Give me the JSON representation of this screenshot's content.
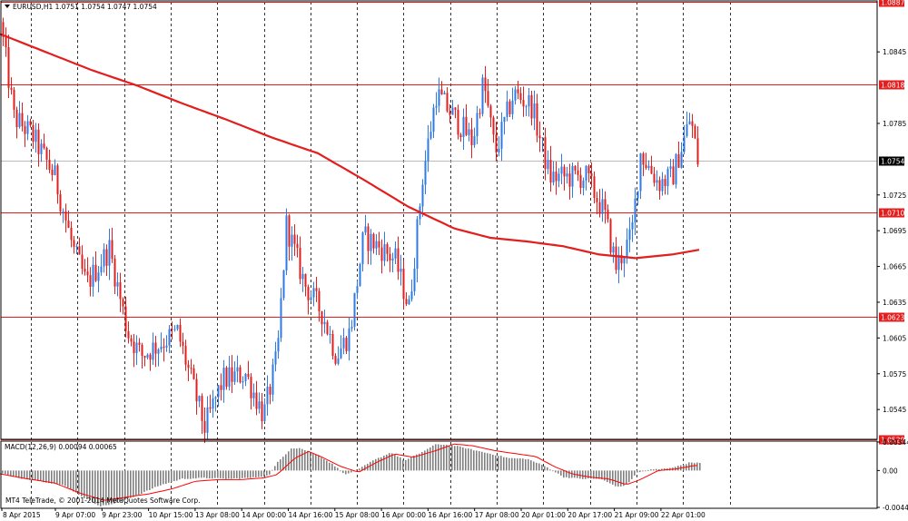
{
  "chart_data": [
    {
      "type": "candlestick",
      "title": "EURUSD,H1  1.0751 1.0754 1.0747 1.0754",
      "ylim": [
        1.052,
        1.0887
      ],
      "y_ticks": [
        "1.0845",
        "1.0785",
        "1.0725",
        "1.0695",
        "1.0665",
        "1.0635",
        "1.0605",
        "1.0575",
        "1.0545"
      ],
      "price_levels": [
        {
          "value": "1.0887",
          "level": 1.0887
        },
        {
          "value": "1.0818",
          "level": 1.0818
        },
        {
          "value": "1.0710",
          "level": 1.071
        },
        {
          "value": "1.0623",
          "level": 1.0623
        },
        {
          "value": "1.0520",
          "level": 1.052
        }
      ],
      "current_price": {
        "value": "1.0754",
        "level": 1.0754
      },
      "moving_average_anchors": [
        [
          0,
          1.086
        ],
        [
          50,
          1.0845
        ],
        [
          100,
          1.083
        ],
        [
          150,
          1.0817
        ],
        [
          200,
          1.0802
        ],
        [
          250,
          1.0788
        ],
        [
          300,
          1.0773
        ],
        [
          350,
          1.076
        ],
        [
          400,
          1.0738
        ],
        [
          450,
          1.0715
        ],
        [
          500,
          1.0697
        ],
        [
          540,
          1.0689
        ],
        [
          580,
          1.0686
        ],
        [
          620,
          1.0682
        ],
        [
          660,
          1.0675
        ],
        [
          700,
          1.0672
        ],
        [
          740,
          1.0675
        ],
        [
          770,
          1.0679
        ]
      ],
      "price_path": [
        [
          0,
          1.087
        ],
        [
          15,
          1.079
        ],
        [
          35,
          1.0775
        ],
        [
          60,
          1.074
        ],
        [
          80,
          1.068
        ],
        [
          95,
          1.065
        ],
        [
          120,
          1.068
        ],
        [
          140,
          1.061
        ],
        [
          155,
          1.059
        ],
        [
          175,
          1.06
        ],
        [
          195,
          1.061
        ],
        [
          210,
          1.057
        ],
        [
          225,
          1.053
        ],
        [
          245,
          1.057
        ],
        [
          270,
          1.0575
        ],
        [
          290,
          1.054
        ],
        [
          305,
          1.059
        ],
        [
          315,
          1.07
        ],
        [
          335,
          1.065
        ],
        [
          355,
          1.0625
        ],
        [
          370,
          1.059
        ],
        [
          385,
          1.061
        ],
        [
          400,
          1.069
        ],
        [
          420,
          1.068
        ],
        [
          435,
          1.067
        ],
        [
          450,
          1.063
        ],
        [
          465,
          1.074
        ],
        [
          480,
          1.081
        ],
        [
          500,
          1.079
        ],
        [
          520,
          1.077
        ],
        [
          532,
          1.082
        ],
        [
          545,
          1.076
        ],
        [
          565,
          1.081
        ],
        [
          585,
          1.08
        ],
        [
          605,
          1.074
        ],
        [
          625,
          1.074
        ],
        [
          645,
          1.074
        ],
        [
          665,
          1.071
        ],
        [
          678,
          1.0665
        ],
        [
          695,
          1.069
        ],
        [
          705,
          1.076
        ],
        [
          725,
          1.0735
        ],
        [
          740,
          1.074
        ],
        [
          760,
          1.079
        ],
        [
          768,
          1.0754
        ]
      ]
    },
    {
      "type": "histogram",
      "title": "MACD(12,26,9) 0.00094 0.00065",
      "ylim": [
        -0.00445,
        0.00344
      ],
      "y_ticks": [
        "0.00344",
        "0.00",
        "-0.00445"
      ],
      "histogram_path": [
        [
          0,
          -0.0003
        ],
        [
          20,
          -0.0009
        ],
        [
          40,
          -0.0012
        ],
        [
          70,
          -0.0018
        ],
        [
          95,
          -0.0035
        ],
        [
          110,
          -0.0043
        ],
        [
          125,
          -0.004
        ],
        [
          150,
          -0.003
        ],
        [
          175,
          -0.0018
        ],
        [
          200,
          -0.001
        ],
        [
          225,
          -0.0009
        ],
        [
          250,
          -0.001
        ],
        [
          275,
          -0.0009
        ],
        [
          295,
          -0.0006
        ],
        [
          305,
          0.001
        ],
        [
          320,
          0.0027
        ],
        [
          330,
          0.0027
        ],
        [
          350,
          0.0018
        ],
        [
          365,
          0.0008
        ],
        [
          380,
          -0.0005
        ],
        [
          395,
          0.0002
        ],
        [
          410,
          0.0012
        ],
        [
          430,
          0.0022
        ],
        [
          445,
          0.0012
        ],
        [
          460,
          0.002
        ],
        [
          480,
          0.0032
        ],
        [
          500,
          0.003
        ],
        [
          520,
          0.0025
        ],
        [
          540,
          0.002
        ],
        [
          560,
          0.0015
        ],
        [
          580,
          0.0014
        ],
        [
          600,
          0.0005
        ],
        [
          620,
          -0.0008
        ],
        [
          640,
          -0.001
        ],
        [
          660,
          -0.001
        ],
        [
          680,
          -0.002
        ],
        [
          690,
          -0.0017
        ],
        [
          700,
          -0.0003
        ],
        [
          715,
          0.0001
        ],
        [
          730,
          0.0002
        ],
        [
          745,
          0.0005
        ],
        [
          760,
          0.001
        ],
        [
          770,
          0.0009
        ]
      ],
      "signal_path": [
        [
          0,
          -0.0004
        ],
        [
          30,
          -0.001
        ],
        [
          60,
          -0.0015
        ],
        [
          90,
          -0.0028
        ],
        [
          115,
          -0.0036
        ],
        [
          140,
          -0.0032
        ],
        [
          165,
          -0.0028
        ],
        [
          190,
          -0.0022
        ],
        [
          215,
          -0.0013
        ],
        [
          240,
          -0.0011
        ],
        [
          265,
          -0.0011
        ],
        [
          290,
          -0.0009
        ],
        [
          305,
          -0.0005
        ],
        [
          325,
          0.0015
        ],
        [
          340,
          0.0023
        ],
        [
          355,
          0.0016
        ],
        [
          375,
          0.0005
        ],
        [
          395,
          -0.0002
        ],
        [
          415,
          0.001
        ],
        [
          435,
          0.002
        ],
        [
          455,
          0.0016
        ],
        [
          480,
          0.0024
        ],
        [
          500,
          0.0032
        ],
        [
          520,
          0.003
        ],
        [
          545,
          0.0024
        ],
        [
          570,
          0.002
        ],
        [
          590,
          0.0017
        ],
        [
          610,
          0.0005
        ],
        [
          630,
          -0.0004
        ],
        [
          650,
          -0.0008
        ],
        [
          670,
          -0.001
        ],
        [
          690,
          -0.0017
        ],
        [
          705,
          -0.0011
        ],
        [
          725,
          0.0
        ],
        [
          745,
          0.0002
        ],
        [
          765,
          0.0006
        ],
        [
          770,
          0.0006
        ]
      ]
    }
  ],
  "x_axis_labels": [
    "8 Apr 2015",
    "9 Apr 07:00",
    "9 Apr 23:00",
    "10 Apr 15:00",
    "13 Apr 08:00",
    "14 Apr 00:00",
    "14 Apr 16:00",
    "15 Apr 08:00",
    "16 Apr 00:00",
    "16 Apr 16:00",
    "17 Apr 08:00",
    "20 Apr 01:00",
    "20 Apr 17:00",
    "21 Apr 09:00",
    "22 Apr 01:00"
  ],
  "watermark": "MT4 TeleTrade, © 2001-2014 MetaQuotes Software Corp.",
  "colors": {
    "up": "#2f7ae6",
    "down": "#e31e1e",
    "ma": "#e31e1e",
    "level": "#e31e1e",
    "label_bg": "#e31e1e",
    "grid": "#000000",
    "macd_bar": "#808080",
    "signal": "#ff0000"
  },
  "icons": {
    "menu": "triangle-down-icon"
  }
}
